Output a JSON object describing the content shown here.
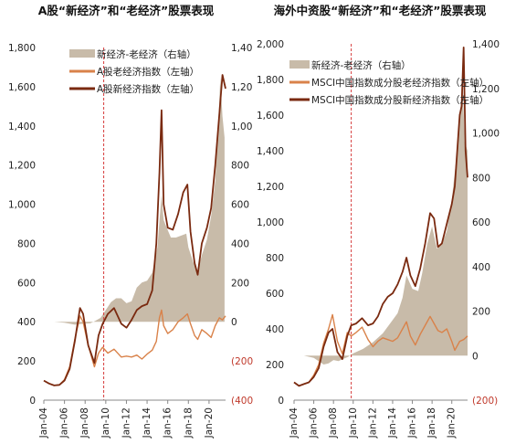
{
  "colors": {
    "area": "#c8bba9",
    "old": "#d9824a",
    "new": "#7a2a10",
    "divider": "#d63c3c",
    "axis": "#888888",
    "negative_tick": "#c0392b"
  },
  "chart_data": [
    {
      "type": "line",
      "title": "A股“新经济”和“老经济”股票表现",
      "x_tick_labels": [
        "Jan-04",
        "Jan-06",
        "Jan-08",
        "Jan-10",
        "Jan-12",
        "Jan-14",
        "Jan-16",
        "Jan-18",
        "Jan-20"
      ],
      "x_range": [
        2004.0,
        2021.6
      ],
      "divider_x": 2009.8,
      "left_axis": {
        "range": [
          0,
          1800
        ],
        "tick_labels": [
          "0",
          "200",
          "400",
          "600",
          "800",
          "1,000",
          "1,200",
          "1,400",
          "1,600",
          "1,800"
        ],
        "tick_values": [
          0,
          200,
          400,
          600,
          800,
          1000,
          1200,
          1400,
          1600,
          1800
        ]
      },
      "right_axis": {
        "range": [
          -400,
          1400
        ],
        "tick_labels": [
          "(400)",
          "(200)",
          "0",
          "200",
          "400",
          "600",
          "800",
          "1,000",
          "1,200",
          "1,400"
        ],
        "tick_values": [
          -400,
          -200,
          0,
          200,
          400,
          600,
          800,
          1000,
          1200,
          1400
        ]
      },
      "legend": [
        "新经济-老经济（右轴）",
        "A股老经济指数（左轴）",
        "A股新经济指数（左轴）"
      ],
      "legend_position": "top-right",
      "series": [
        {
          "name": "新经济-老经济（右轴）",
          "kind": "area",
          "axis": "right",
          "x": [
            2004.0,
            2005.0,
            2006.0,
            2007.0,
            2007.8,
            2008.5,
            2009.0,
            2009.5,
            2010.0,
            2010.5,
            2011.0,
            2011.5,
            2012.0,
            2012.5,
            2013.0,
            2013.5,
            2014.0,
            2014.5,
            2015.0,
            2015.4,
            2015.6,
            2015.9,
            2016.3,
            2016.8,
            2017.3,
            2017.8,
            2018.0,
            2018.5,
            2018.9,
            2019.3,
            2019.8,
            2020.2,
            2020.6,
            2020.9,
            2021.1,
            2021.3,
            2021.5
          ],
          "y": [
            0,
            0,
            -5,
            -15,
            -10,
            -8,
            5,
            20,
            60,
            100,
            120,
            120,
            95,
            105,
            175,
            200,
            210,
            250,
            380,
            650,
            520,
            480,
            430,
            430,
            440,
            450,
            380,
            300,
            260,
            340,
            420,
            540,
            720,
            1020,
            1250,
            1050,
            940
          ]
        },
        {
          "name": "A股老经济指数（左轴）",
          "kind": "line",
          "axis": "left",
          "x": [
            2004.0,
            2004.5,
            2005.0,
            2005.5,
            2006.0,
            2006.5,
            2007.0,
            2007.5,
            2007.8,
            2008.3,
            2008.9,
            2009.3,
            2009.7,
            2010.2,
            2010.8,
            2011.5,
            2012.0,
            2012.5,
            2013.0,
            2013.5,
            2014.0,
            2014.5,
            2014.9,
            2015.2,
            2015.4,
            2015.6,
            2016.0,
            2016.5,
            2017.0,
            2017.5,
            2017.9,
            2018.2,
            2018.6,
            2018.9,
            2019.3,
            2019.8,
            2020.2,
            2020.6,
            2021.0,
            2021.3,
            2021.6
          ],
          "y": [
            100,
            85,
            75,
            78,
            105,
            170,
            310,
            430,
            400,
            280,
            170,
            240,
            270,
            240,
            260,
            220,
            225,
            220,
            230,
            210,
            235,
            255,
            300,
            420,
            460,
            380,
            340,
            360,
            400,
            420,
            440,
            390,
            330,
            310,
            360,
            340,
            320,
            380,
            420,
            410,
            430
          ]
        },
        {
          "name": "A股新经济指数（左轴）",
          "kind": "line",
          "axis": "left",
          "x": [
            2004.0,
            2004.5,
            2005.0,
            2005.5,
            2006.0,
            2006.5,
            2007.0,
            2007.5,
            2007.8,
            2008.3,
            2008.9,
            2009.3,
            2009.7,
            2010.2,
            2010.8,
            2011.5,
            2012.0,
            2012.5,
            2013.0,
            2013.5,
            2014.0,
            2014.5,
            2014.9,
            2015.2,
            2015.4,
            2015.6,
            2016.0,
            2016.5,
            2017.0,
            2017.5,
            2017.9,
            2018.2,
            2018.6,
            2018.9,
            2019.3,
            2019.8,
            2020.2,
            2020.6,
            2021.0,
            2021.3,
            2021.6
          ],
          "y": [
            100,
            85,
            75,
            78,
            100,
            160,
            300,
            470,
            440,
            280,
            190,
            330,
            390,
            440,
            470,
            390,
            370,
            410,
            460,
            480,
            490,
            560,
            800,
            1160,
            1480,
            1000,
            880,
            870,
            950,
            1060,
            1100,
            860,
            700,
            640,
            800,
            880,
            980,
            1200,
            1460,
            1660,
            1590
          ]
        }
      ]
    },
    {
      "type": "line",
      "title": "海外中资股“新经济”和“老经济”股票表现",
      "x_tick_labels": [
        "Jan-04",
        "Jan-06",
        "Jan-08",
        "Jan-10",
        "Jan-12",
        "Jan-14",
        "Jan-16",
        "Jan-18",
        "Jan-20"
      ],
      "x_range": [
        2004.0,
        2021.6
      ],
      "divider_x": 2009.8,
      "left_axis": {
        "range": [
          0,
          2000
        ],
        "tick_labels": [
          "0",
          "200",
          "400",
          "600",
          "800",
          "1,000",
          "1,200",
          "1,400",
          "1,600",
          "1,800",
          "2,000"
        ],
        "tick_values": [
          0,
          200,
          400,
          600,
          800,
          1000,
          1200,
          1400,
          1600,
          1800,
          2000
        ]
      },
      "right_axis": {
        "range": [
          -200,
          1400
        ],
        "tick_labels": [
          "(200)",
          "0",
          "200",
          "400",
          "600",
          "800",
          "1,000",
          "1,200",
          "1,400"
        ],
        "tick_values": [
          -200,
          0,
          200,
          400,
          600,
          800,
          1000,
          1200,
          1400
        ]
      },
      "legend": [
        "新经济-老经济（右轴）",
        "MSCI中国指数成分股老经济指数（左轴）",
        "MSCI中国指数成分股新经济指数（左轴）"
      ],
      "legend_position": "top-right",
      "series": [
        {
          "name": "新经济-老经济（右轴）",
          "kind": "area",
          "axis": "right",
          "x": [
            2004.0,
            2005.0,
            2006.0,
            2007.0,
            2007.5,
            2008.0,
            2008.5,
            2009.0,
            2009.5,
            2010.0,
            2011.0,
            2012.0,
            2013.0,
            2014.0,
            2014.5,
            2015.0,
            2015.4,
            2016.0,
            2016.6,
            2017.0,
            2017.5,
            2018.0,
            2018.5,
            2019.0,
            2019.5,
            2020.0,
            2020.5,
            2020.9,
            2021.1,
            2021.3,
            2021.6
          ],
          "y": [
            0,
            0,
            -10,
            -40,
            -35,
            -20,
            -25,
            -15,
            -5,
            10,
            30,
            60,
            100,
            160,
            190,
            260,
            360,
            300,
            290,
            370,
            500,
            580,
            480,
            500,
            560,
            700,
            900,
            1120,
            1220,
            960,
            920
          ]
        },
        {
          "name": "MSCI中国指数成分股老经济指数（左轴）",
          "kind": "line",
          "axis": "left",
          "x": [
            2004.0,
            2004.5,
            2005.0,
            2005.5,
            2006.0,
            2006.5,
            2007.0,
            2007.5,
            2007.9,
            2008.4,
            2008.9,
            2009.4,
            2009.8,
            2010.3,
            2010.9,
            2011.5,
            2012.0,
            2012.5,
            2013.0,
            2013.5,
            2014.0,
            2014.5,
            2015.0,
            2015.4,
            2015.8,
            2016.3,
            2016.8,
            2017.3,
            2017.8,
            2018.2,
            2018.6,
            2019.0,
            2019.5,
            2020.0,
            2020.3,
            2020.8,
            2021.2,
            2021.6
          ],
          "y": [
            100,
            80,
            90,
            100,
            140,
            200,
            320,
            400,
            480,
            330,
            260,
            380,
            360,
            380,
            410,
            340,
            300,
            330,
            350,
            340,
            330,
            350,
            400,
            440,
            360,
            310,
            370,
            420,
            470,
            430,
            390,
            380,
            400,
            330,
            280,
            330,
            340,
            360
          ]
        },
        {
          "name": "MSCI中国指数成分股新经济指数（左轴）",
          "kind": "line",
          "axis": "left",
          "x": [
            2004.0,
            2004.5,
            2005.0,
            2005.5,
            2006.0,
            2006.5,
            2007.0,
            2007.5,
            2007.9,
            2008.4,
            2008.9,
            2009.4,
            2009.8,
            2010.3,
            2010.9,
            2011.5,
            2012.0,
            2012.5,
            2013.0,
            2013.5,
            2014.0,
            2014.5,
            2015.0,
            2015.4,
            2015.8,
            2016.3,
            2016.8,
            2017.3,
            2017.8,
            2018.2,
            2018.6,
            2019.0,
            2019.5,
            2020.0,
            2020.3,
            2020.8,
            2021.0,
            2021.2,
            2021.4,
            2021.6
          ],
          "y": [
            100,
            80,
            90,
            100,
            130,
            180,
            300,
            380,
            400,
            270,
            230,
            360,
            420,
            430,
            460,
            420,
            430,
            470,
            540,
            580,
            600,
            650,
            720,
            800,
            700,
            640,
            740,
            880,
            1050,
            1020,
            860,
            880,
            990,
            1100,
            1200,
            1600,
            1650,
            1980,
            1400,
            1250
          ]
        }
      ]
    }
  ]
}
